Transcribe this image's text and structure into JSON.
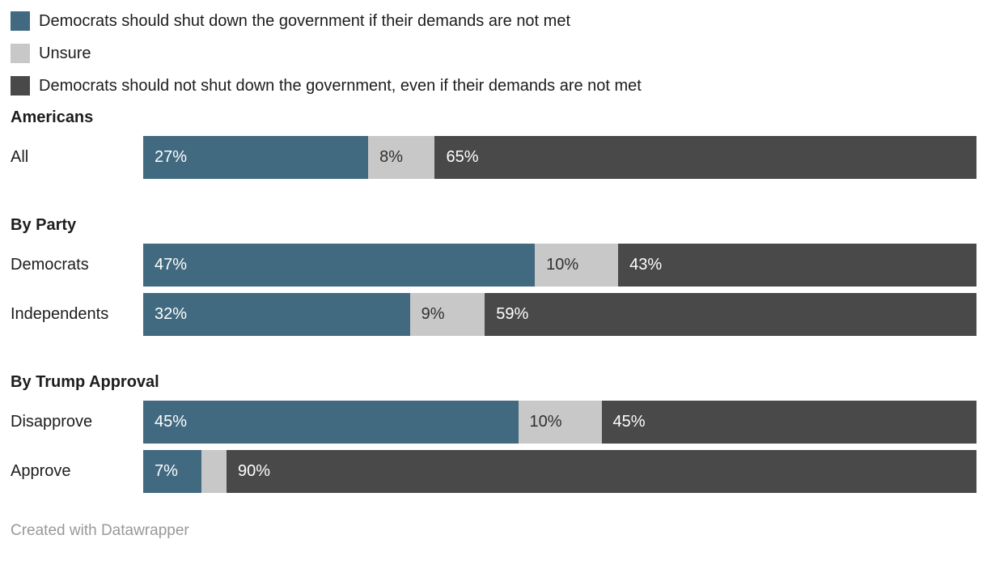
{
  "colors": {
    "yes": "#416a80",
    "unsure": "#c8c8c8",
    "no": "#494949"
  },
  "label_colors": {
    "yes": "#ffffff",
    "unsure": "#303030",
    "no": "#ffffff"
  },
  "legend": {
    "items": [
      {
        "label": "Democrats should shut down the government if their demands are not met",
        "color_key": "yes"
      },
      {
        "label": "Unsure",
        "color_key": "unsure"
      },
      {
        "label": "Democrats should not shut down the government, even if their demands are not met",
        "color_key": "no"
      }
    ]
  },
  "chart_data": {
    "type": "bar",
    "variant": "stacked-horizontal-100percent",
    "series_names": [
      "Democrats should shut down the government if their demands are not met",
      "Unsure",
      "Democrats should not shut down the government, even if their demands are not met"
    ],
    "segment_color_keys": [
      "yes",
      "unsure",
      "no"
    ],
    "xlim": [
      0,
      100
    ],
    "grid": false,
    "legend_position": "top-left",
    "sections": [
      {
        "header": "Americans",
        "rows": [
          {
            "label": "All",
            "values": [
              27,
              8,
              65
            ],
            "value_labels": [
              "27%",
              "8%",
              "65%"
            ]
          }
        ]
      },
      {
        "header": "By Party",
        "rows": [
          {
            "label": "Democrats",
            "values": [
              47,
              10,
              43
            ],
            "value_labels": [
              "47%",
              "10%",
              "43%"
            ]
          },
          {
            "label": "Independents",
            "values": [
              32,
              9,
              59
            ],
            "value_labels": [
              "32%",
              "9%",
              "59%"
            ]
          }
        ]
      },
      {
        "header": "By Trump Approval",
        "rows": [
          {
            "label": "Disapprove",
            "values": [
              45,
              10,
              45
            ],
            "value_labels": [
              "45%",
              "10%",
              "45%"
            ]
          },
          {
            "label": "Approve",
            "values": [
              7,
              3,
              90
            ],
            "value_labels": [
              "7%",
              "",
              "90%"
            ]
          }
        ]
      }
    ]
  },
  "footer": {
    "credit": "Created with Datawrapper"
  }
}
